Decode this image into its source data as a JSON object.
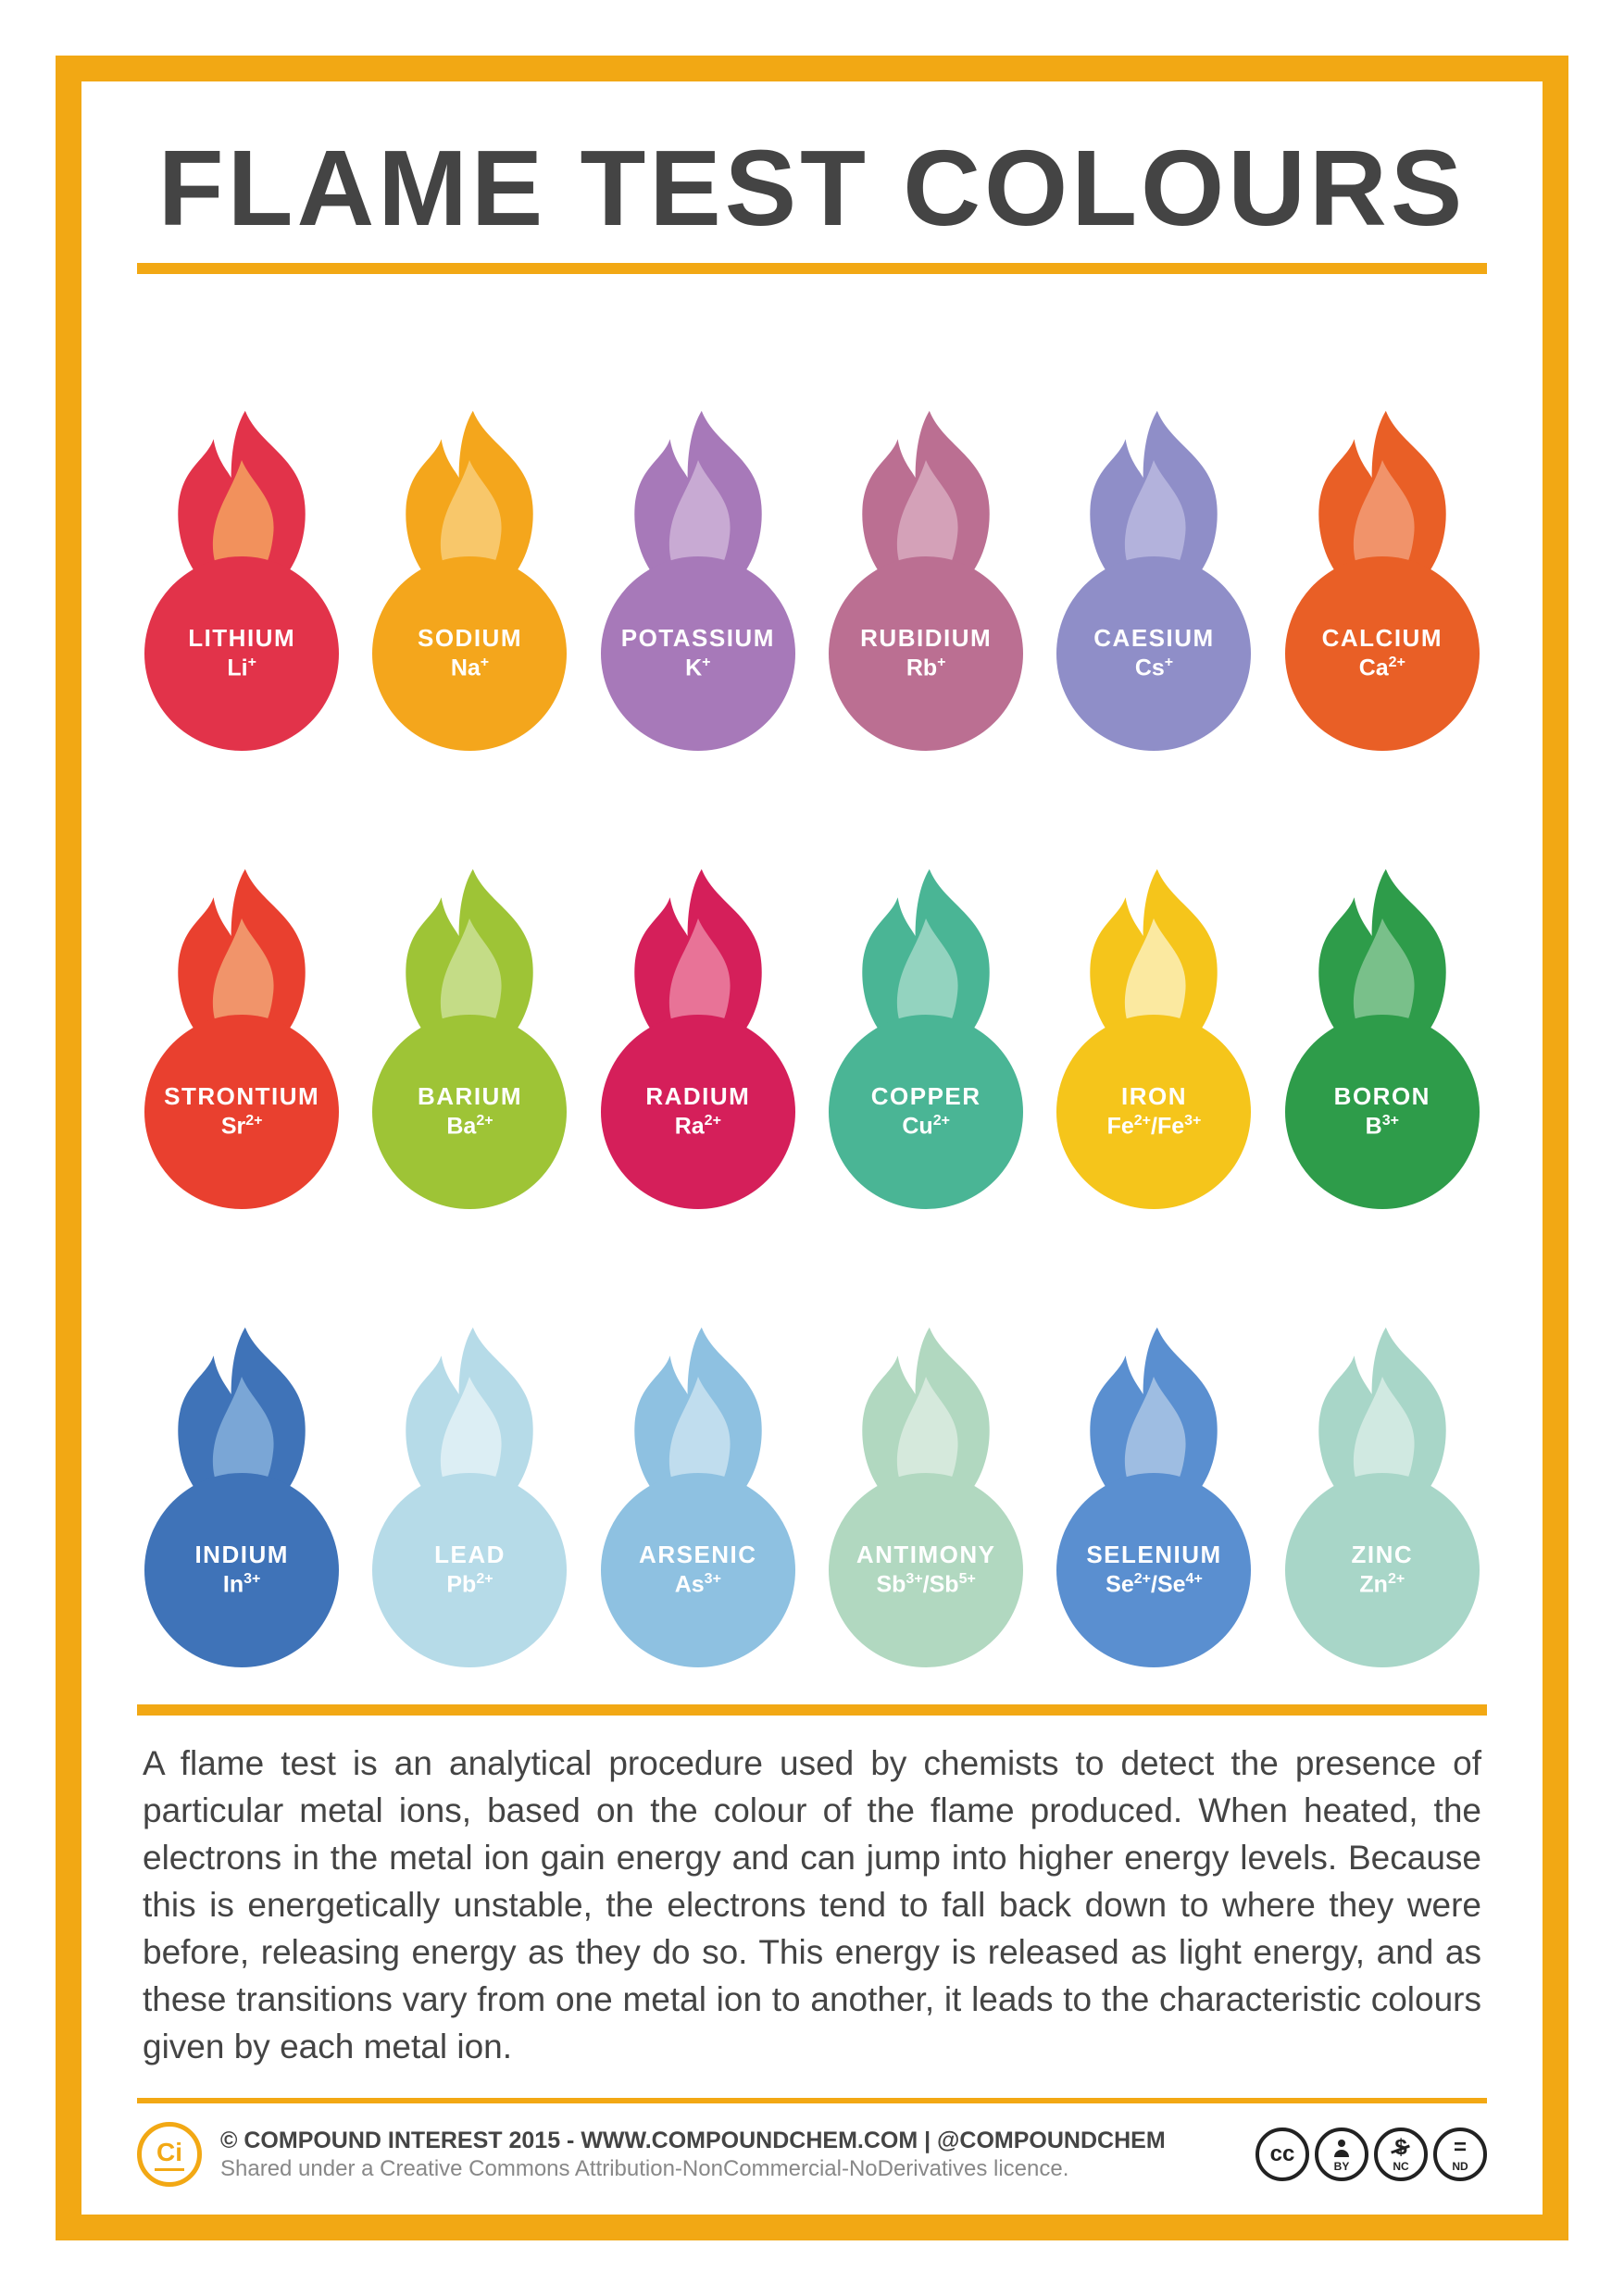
{
  "title": "FLAME TEST COLOURS",
  "border_color": "#f2a814",
  "elements": [
    {
      "name": "LITHIUM",
      "ion": "Li",
      "charge": "+",
      "circle": "#e2334a",
      "flame_outer": "#e2334a",
      "flame_inner": "#f2915c"
    },
    {
      "name": "SODIUM",
      "ion": "Na",
      "charge": "+",
      "circle": "#f4a61c",
      "flame_outer": "#f4a61c",
      "flame_inner": "#f8c76a"
    },
    {
      "name": "POTASSIUM",
      "ion": "K",
      "charge": "+",
      "circle": "#a779b9",
      "flame_outer": "#a779b9",
      "flame_inner": "#c8aad3"
    },
    {
      "name": "RUBIDIUM",
      "ion": "Rb",
      "charge": "+",
      "circle": "#bb6f92",
      "flame_outer": "#bb6f92",
      "flame_inner": "#d4a1b8"
    },
    {
      "name": "CAESIUM",
      "ion": "Cs",
      "charge": "+",
      "circle": "#8f8ec8",
      "flame_outer": "#8f8ec8",
      "flame_inner": "#b3b2dc"
    },
    {
      "name": "CALCIUM",
      "ion": "Ca",
      "charge": "2+",
      "circle": "#e95f26",
      "flame_outer": "#e95f26",
      "flame_inner": "#f1936a"
    },
    {
      "name": "STRONTIUM",
      "ion": "Sr",
      "charge": "2+",
      "circle": "#e9402f",
      "flame_outer": "#e9402f",
      "flame_inner": "#f1946a"
    },
    {
      "name": "BARIUM",
      "ion": "Ba",
      "charge": "2+",
      "circle": "#9ec436",
      "flame_outer": "#9ec436",
      "flame_inner": "#c4dc86"
    },
    {
      "name": "RADIUM",
      "ion": "Ra",
      "charge": "2+",
      "circle": "#d51f5a",
      "flame_outer": "#d51f5a",
      "flame_inner": "#e87397"
    },
    {
      "name": "COPPER",
      "ion": "Cu",
      "charge": "2+",
      "circle": "#4ab595",
      "flame_outer": "#4ab595",
      "flame_inner": "#93d3bf"
    },
    {
      "name": "IRON",
      "ion": "Fe",
      "charge": "2+/Fe3+",
      "ion_html": "Fe<sup>2+</sup>/Fe<sup>3+</sup>",
      "circle": "#f5c51b",
      "flame_outer": "#f5c51b",
      "flame_inner": "#fbe9a0"
    },
    {
      "name": "BORON",
      "ion": "B",
      "charge": "3+",
      "circle": "#2e9c4a",
      "flame_outer": "#2e9c4a",
      "flame_inner": "#79c08a"
    },
    {
      "name": "INDIUM",
      "ion": "In",
      "charge": "3+",
      "circle": "#3f73b8",
      "flame_outer": "#3f73b8",
      "flame_inner": "#7aa6d6"
    },
    {
      "name": "LEAD",
      "ion": "Pb",
      "charge": "2+",
      "circle": "#b6dbe8",
      "flame_outer": "#b6dbe8",
      "flame_inner": "#dceef4"
    },
    {
      "name": "ARSENIC",
      "ion": "As",
      "charge": "3+",
      "circle": "#8ec1e1",
      "flame_outer": "#8ec1e1",
      "flame_inner": "#c0ddee"
    },
    {
      "name": "ANTIMONY",
      "ion": "Sb",
      "charge": "3+/Sb5+",
      "ion_html": "Sb<sup>3+</sup>/Sb<sup>5+</sup>",
      "circle": "#b1d8c0",
      "flame_outer": "#b1d8c0",
      "flame_inner": "#d5e9dc"
    },
    {
      "name": "SELENIUM",
      "ion": "Se",
      "charge": "2+/Se4+",
      "ion_html": "Se<sup>2+</sup>/Se<sup>4+</sup>",
      "circle": "#5a8fd0",
      "flame_outer": "#5a8fd0",
      "flame_inner": "#9ebde2"
    },
    {
      "name": "ZINC",
      "ion": "Zn",
      "charge": "2+",
      "circle": "#a8d6c8",
      "flame_outer": "#a8d6c8",
      "flame_inner": "#d0e9e1"
    }
  ],
  "description": "A flame test is an analytical procedure used by chemists to detect the presence of particular metal ions, based on the colour of the flame produced. When heated, the electrons in the metal ion gain energy and can jump into higher energy levels. Because this is energetically unstable, the electrons tend to fall back down to where they were before, releasing energy as they do so. This energy is released as light energy, and as these transitions vary from one metal ion to another, it leads to the characteristic colours given by each metal ion.",
  "footer": {
    "logo_text": "Ci",
    "line1": "© COMPOUND INTEREST 2015 - WWW.COMPOUNDCHEM.COM | @COMPOUNDCHEM",
    "line2": "Shared under a Creative Commons Attribution-NonCommercial-NoDerivatives licence.",
    "badges": [
      {
        "top": "cc",
        "label": ""
      },
      {
        "top": "●",
        "label": "BY",
        "icon": "person"
      },
      {
        "top": "$",
        "label": "NC",
        "strike": true
      },
      {
        "top": "=",
        "label": "ND"
      }
    ]
  }
}
